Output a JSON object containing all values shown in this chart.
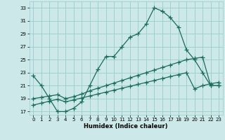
{
  "xlabel": "Humidex (Indice chaleur)",
  "bg_color": "#cce8e8",
  "grid_color": "#99cccc",
  "line_color": "#1a6b5a",
  "xlim": [
    -0.5,
    23.5
  ],
  "ylim": [
    16.5,
    34.0
  ],
  "xticks": [
    0,
    1,
    2,
    3,
    4,
    5,
    6,
    7,
    8,
    9,
    10,
    11,
    12,
    13,
    14,
    15,
    16,
    17,
    18,
    19,
    20,
    21,
    22,
    23
  ],
  "yticks": [
    17,
    19,
    21,
    23,
    25,
    27,
    29,
    31,
    33
  ],
  "curve1_x": [
    0,
    1,
    2,
    3,
    4,
    5,
    6,
    7,
    8,
    9,
    10,
    11,
    12,
    13,
    14,
    15,
    16,
    17,
    18,
    19,
    20,
    21,
    22,
    23
  ],
  "curve1_y": [
    22.5,
    21.0,
    19.0,
    17.0,
    17.0,
    17.5,
    18.5,
    21.0,
    23.5,
    25.5,
    25.5,
    27.0,
    28.5,
    29.0,
    30.5,
    33.0,
    32.5,
    31.5,
    30.0,
    26.5,
    25.0,
    23.0,
    21.0,
    21.0
  ],
  "curve2_x": [
    0,
    1,
    2,
    3,
    4,
    5,
    6,
    7,
    8,
    9,
    10,
    11,
    12,
    13,
    14,
    15,
    16,
    17,
    18,
    19,
    20,
    21,
    22,
    23
  ],
  "curve2_y": [
    19.0,
    19.2,
    19.4,
    19.6,
    19.0,
    19.3,
    19.7,
    20.2,
    20.6,
    21.0,
    21.4,
    21.8,
    22.2,
    22.6,
    23.0,
    23.4,
    23.8,
    24.2,
    24.6,
    25.0,
    25.2,
    25.4,
    21.0,
    21.0
  ],
  "curve3_x": [
    0,
    1,
    2,
    3,
    4,
    5,
    6,
    7,
    8,
    9,
    10,
    11,
    12,
    13,
    14,
    15,
    16,
    17,
    18,
    19,
    20,
    21,
    22,
    23
  ],
  "curve3_y": [
    18.0,
    18.3,
    18.6,
    18.9,
    18.5,
    18.8,
    19.1,
    19.4,
    19.7,
    20.0,
    20.3,
    20.6,
    20.9,
    21.2,
    21.5,
    21.8,
    22.1,
    22.4,
    22.7,
    23.0,
    20.5,
    21.0,
    21.3,
    21.5
  ]
}
